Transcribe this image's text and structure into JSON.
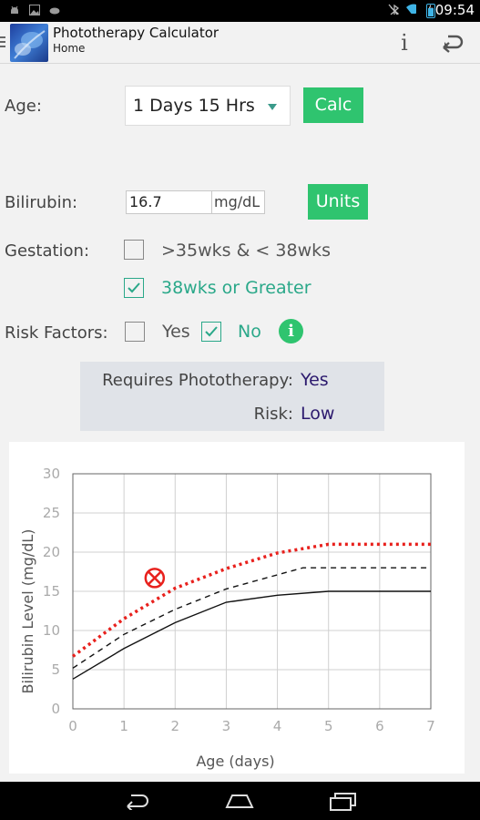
{
  "status_bar": {
    "time": "09:54"
  },
  "action_bar": {
    "title": "Phototherapy Calculator",
    "subtitle": "Home"
  },
  "form": {
    "age_label": "Age:",
    "age_value": "1 Days 15 Hrs",
    "calc_label": "Calc",
    "bilirubin_label": "Bilirubin:",
    "bilirubin_value": "16.7",
    "bilirubin_unit": "mg/dL",
    "units_label": "Units",
    "gestation_label": "Gestation:",
    "gestation_options": [
      {
        "label": ">35wks & < 38wks",
        "checked": false
      },
      {
        "label": "38wks or Greater",
        "checked": true
      }
    ],
    "risk_label": "Risk Factors:",
    "risk_options": [
      {
        "label": "Yes",
        "checked": false
      },
      {
        "label": "No",
        "checked": true
      }
    ]
  },
  "results": {
    "phototherapy_label": "Requires Phototherapy:",
    "phototherapy_value": "Yes",
    "risk_label": "Risk:",
    "risk_value": "Low"
  },
  "chart_data": {
    "type": "line",
    "xlabel": "Age (days)",
    "ylabel": "Bilirubin Level (mg/dL)",
    "xlim": [
      0,
      7
    ],
    "ylim": [
      0,
      30
    ],
    "x_ticks": [
      "0",
      "1",
      "2",
      "3",
      "4",
      "5",
      "6",
      "7"
    ],
    "y_ticks": [
      "0",
      "5",
      "10",
      "15",
      "20",
      "25",
      "30"
    ],
    "grid": true,
    "series": [
      {
        "style": "dotted",
        "color": "#e8211d",
        "points": [
          [
            0,
            6.7
          ],
          [
            1,
            11.5
          ],
          [
            2,
            15.4
          ],
          [
            3,
            17.9
          ],
          [
            4,
            19.9
          ],
          [
            5,
            21
          ],
          [
            6,
            21
          ],
          [
            7,
            21
          ]
        ]
      },
      {
        "style": "dashed",
        "color": "#111111",
        "points": [
          [
            0,
            5.2
          ],
          [
            1,
            9.5
          ],
          [
            2,
            12.7
          ],
          [
            3,
            15.3
          ],
          [
            4,
            17.1
          ],
          [
            4.5,
            18
          ],
          [
            5,
            18
          ],
          [
            6,
            18
          ],
          [
            7,
            18
          ]
        ]
      },
      {
        "style": "solid",
        "color": "#111111",
        "points": [
          [
            0,
            3.8
          ],
          [
            1,
            7.7
          ],
          [
            2,
            11
          ],
          [
            3,
            13.6
          ],
          [
            4,
            14.5
          ],
          [
            5,
            15
          ],
          [
            6,
            15
          ],
          [
            7,
            15
          ]
        ]
      }
    ],
    "marker": {
      "x": 1.6,
      "y": 16.7,
      "color": "#e8211d"
    }
  }
}
